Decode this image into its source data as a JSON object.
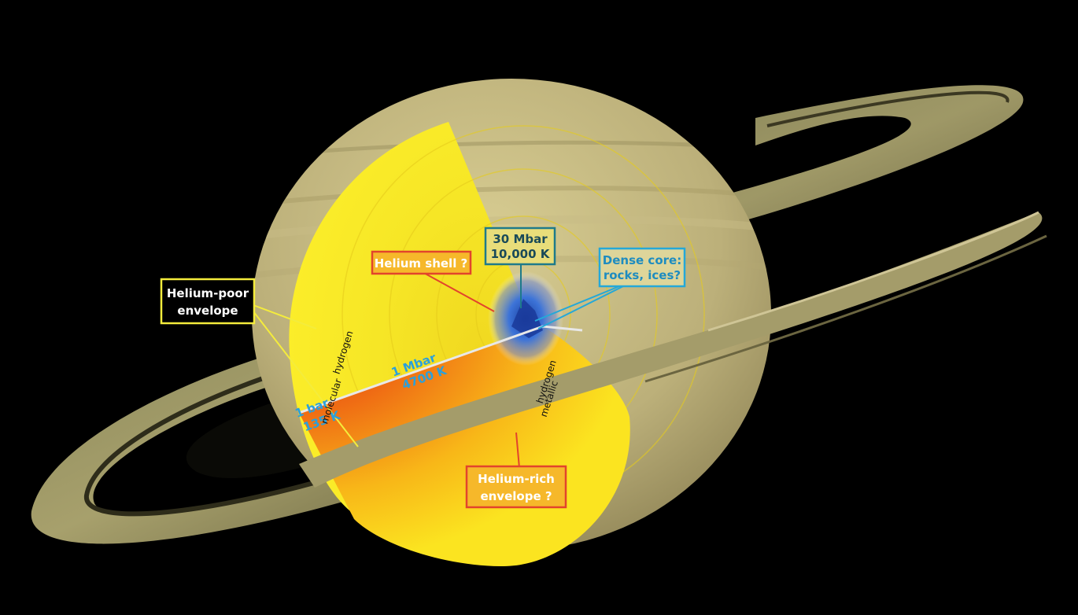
{
  "labels": {
    "helium_poor": [
      "Helium-poor",
      "envelope"
    ],
    "helium_shell": "Helium shell ?",
    "core_conditions": [
      "30 Mbar",
      "10,000 K"
    ],
    "dense_core": [
      "Dense core:",
      "rocks, ices?"
    ],
    "helium_rich": [
      "Helium-rich",
      "envelope ?"
    ],
    "one_bar": [
      "1 bar",
      "135 K"
    ],
    "one_mbar": [
      "1 Mbar",
      "4700 K"
    ],
    "molecular": [
      "molecular",
      "hydrogen"
    ],
    "metallic": [
      "metallic",
      "hydrogen"
    ]
  },
  "colors": {
    "background": "#000000",
    "helium_poor_box": "#f4ec3c",
    "helium_shell_box": "#e2442c",
    "core_box": "#1e7a8a",
    "dense_core_box": "#24a8d8",
    "helium_rich_box": "#e2442c",
    "blue_text": "#2aa0dc"
  }
}
